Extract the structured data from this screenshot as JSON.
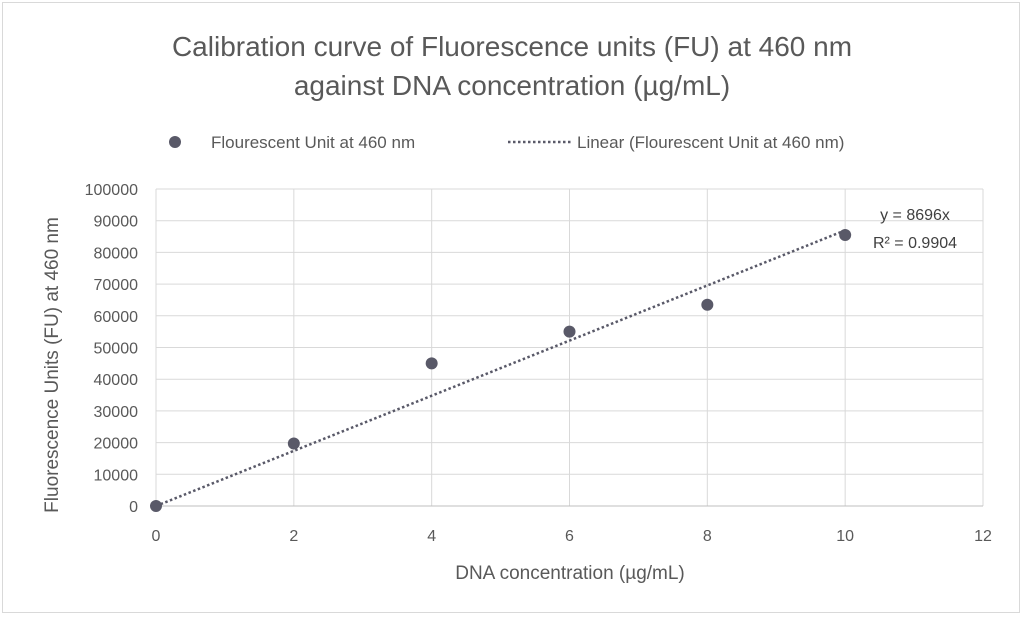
{
  "chart_data": {
    "type": "scatter",
    "title_lines": [
      "Calibration curve of Fluorescence  units (FU) at 460 nm",
      "against DNA concentration (µg/mL)"
    ],
    "xlabel": "DNA concentration (µg/mL)",
    "ylabel": "Fluorescence  Units (FU) at 460 nm",
    "xlim": [
      0,
      12
    ],
    "ylim": [
      0,
      100000
    ],
    "x_ticks": [
      "0",
      "2",
      "4",
      "6",
      "8",
      "10",
      "12"
    ],
    "y_ticks": [
      "0",
      "10000",
      "20000",
      "30000",
      "40000",
      "50000",
      "60000",
      "70000",
      "80000",
      "90000",
      "100000"
    ],
    "grid": true,
    "legend_position": "top",
    "series": [
      {
        "name": "Flourescent Unit at 460 nm",
        "color": "#595968",
        "x": [
          0,
          2,
          4,
          6,
          8,
          10
        ],
        "y": [
          0,
          19700,
          45000,
          55000,
          63500,
          85500
        ]
      }
    ],
    "trendline": {
      "name": "Linear (Flourescent Unit at 460 nm)",
      "type": "linear",
      "slope": 8696,
      "intercept": 0,
      "x_range": [
        0,
        10
      ],
      "color": "#595968",
      "equation": "y = 8696x",
      "r_squared": "R² = 0.9904"
    }
  }
}
